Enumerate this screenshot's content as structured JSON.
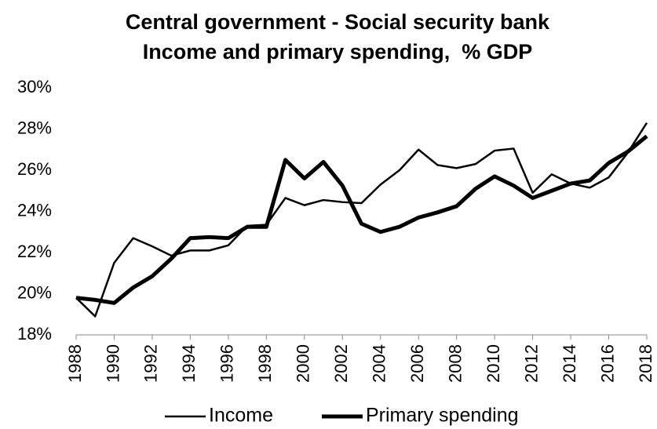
{
  "chart_data": {
    "type": "line",
    "title": [
      "Central government - Social security bank",
      "Income and primary spending,  % GDP"
    ],
    "x": [
      1988,
      1989,
      1990,
      1991,
      1992,
      1993,
      1994,
      1995,
      1996,
      1997,
      1998,
      1999,
      2000,
      2001,
      2002,
      2003,
      2004,
      2005,
      2006,
      2007,
      2008,
      2009,
      2010,
      2011,
      2012,
      2013,
      2014,
      2015,
      2016,
      2017,
      2018
    ],
    "series": [
      {
        "name": "Income",
        "color": "#000000",
        "line_width": 2.5,
        "values": [
          19.8,
          18.9,
          21.5,
          22.7,
          22.3,
          21.85,
          22.1,
          22.1,
          22.35,
          23.3,
          23.35,
          24.65,
          24.3,
          24.55,
          24.45,
          24.4,
          25.3,
          26.0,
          27.0,
          26.25,
          26.1,
          26.3,
          26.95,
          27.05,
          24.9,
          25.8,
          25.35,
          25.15,
          25.65,
          26.85,
          28.3
        ]
      },
      {
        "name": "Primary spending",
        "color": "#000000",
        "line_width": 5,
        "values": [
          19.8,
          19.7,
          19.55,
          20.3,
          20.85,
          21.7,
          22.7,
          22.75,
          22.7,
          23.25,
          23.25,
          26.5,
          25.6,
          26.4,
          25.25,
          23.4,
          23.0,
          23.25,
          23.7,
          23.95,
          24.25,
          25.1,
          25.7,
          25.25,
          24.65,
          25.0,
          25.35,
          25.5,
          26.35,
          26.9,
          27.65
        ]
      }
    ],
    "xlim": [
      1988,
      2018
    ],
    "xticks": [
      1988,
      1990,
      1992,
      1994,
      1996,
      1998,
      2000,
      2002,
      2004,
      2006,
      2008,
      2010,
      2012,
      2014,
      2016,
      2018
    ],
    "ylim": [
      18,
      30
    ],
    "yticks": [
      {
        "value": 18,
        "label": "18%"
      },
      {
        "value": 20,
        "label": "20%"
      },
      {
        "value": 22,
        "label": "22%"
      },
      {
        "value": 24,
        "label": "24%"
      },
      {
        "value": 26,
        "label": "26%"
      },
      {
        "value": 28,
        "label": "28%"
      },
      {
        "value": 30,
        "label": "30%"
      }
    ],
    "grid": false,
    "legend": "bottom"
  }
}
